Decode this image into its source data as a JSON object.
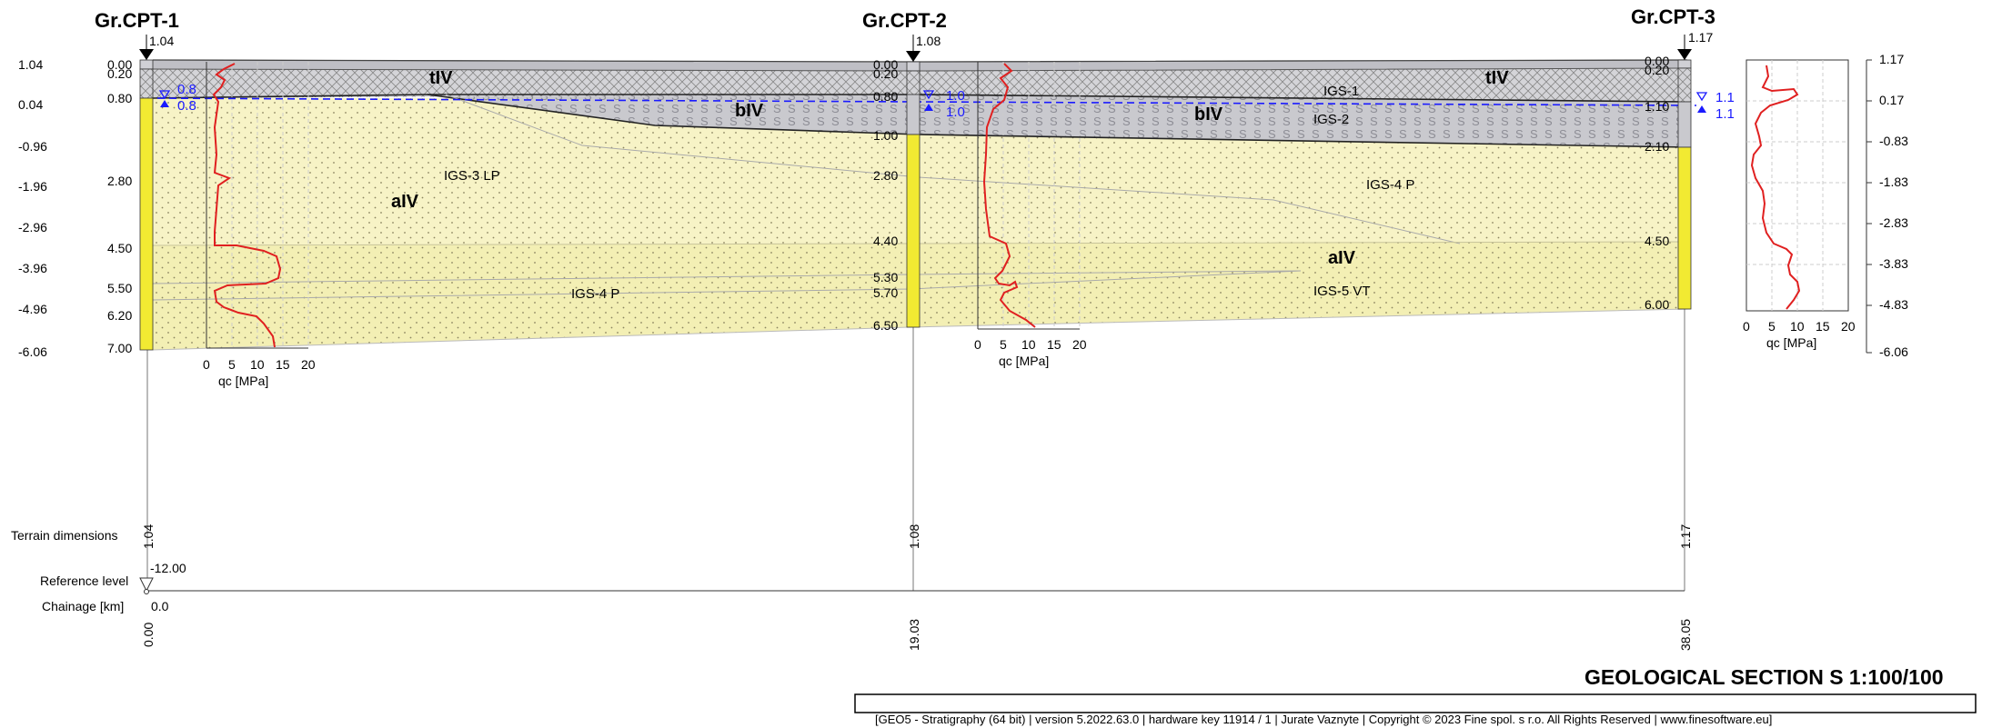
{
  "boreholes": [
    {
      "name": "Gr.CPT-1",
      "elevation_label": "1.04",
      "depths": [
        "0.00",
        "0.20",
        "0.80",
        "2.80",
        "4.50",
        "5.50",
        "6.20",
        "7.00"
      ],
      "gw_labels": [
        "0.8",
        "0.8"
      ],
      "terrain_dimension": "1.04",
      "chainage": "0.00"
    },
    {
      "name": "Gr.CPT-2",
      "elevation_label": "1.08",
      "depths": [
        "0.00",
        "0.20",
        "0.80",
        "1.00",
        "2.80",
        "4.40",
        "5.30",
        "5.70",
        "6.50"
      ],
      "gw_labels": [
        "1.0",
        "1.0"
      ],
      "terrain_dimension": "1.08",
      "chainage": "19.03"
    },
    {
      "name": "Gr.CPT-3",
      "elevation_label": "1.17",
      "depths": [
        "0.00",
        "0.20",
        "1.10",
        "2.10",
        "4.50",
        "6.00"
      ],
      "gw_labels": [
        "1.1",
        "1.1"
      ],
      "terrain_dimension": "1.17",
      "chainage": "38.05"
    }
  ],
  "left_scale": [
    "1.04",
    "0.04",
    "-0.96",
    "-1.96",
    "-2.96",
    "-3.96",
    "-4.96",
    "-6.06"
  ],
  "right_scale": [
    "1.17",
    "0.17",
    "-0.83",
    "-1.83",
    "-2.83",
    "-3.83",
    "-4.83",
    "-6.06"
  ],
  "layer_labels": {
    "tIV_1": "tIV",
    "tIV_2": "tIV",
    "bIV_1": "bIV",
    "bIV_2": "bIV",
    "aIV_1": "aIV",
    "aIV_2": "aIV",
    "igs1": "IGS-1",
    "igs2": "IGS-2",
    "igs3": "IGS-3 LP",
    "igs4a": "IGS-4 P",
    "igs4b": "IGS-4 P",
    "igs5": "IGS-5 VT"
  },
  "qc_axis": {
    "ticks": [
      "0",
      "5",
      "10",
      "15",
      "20"
    ],
    "label": "qc [MPa]"
  },
  "bottom": {
    "terrain_dimensions_label": "Terrain dimensions",
    "reference_level_label": "Reference level",
    "reference_level_value": "-12.00",
    "chainage_label": "Chainage [km]",
    "chainage_start": "0.0"
  },
  "title": "GEOLOGICAL SECTION S 1:100/100",
  "footer": "[GEO5 - Stratigraphy (64 bit) | version 5.2022.63.0 | hardware key 11914 / 1 | Jurate Vaznyte | Copyright © 2023 Fine spol. s r.o. All Rights Reserved | www.finesoftware.eu]",
  "colors": {
    "fill_gray": "#c9c9ce",
    "fill_sand": "#f7f3c6",
    "fill_sand_dark": "#f2eea9",
    "column_yellow": "#f2ea32",
    "gw_blue": "#1a1aff",
    "cpt_red": "#e02020"
  }
}
